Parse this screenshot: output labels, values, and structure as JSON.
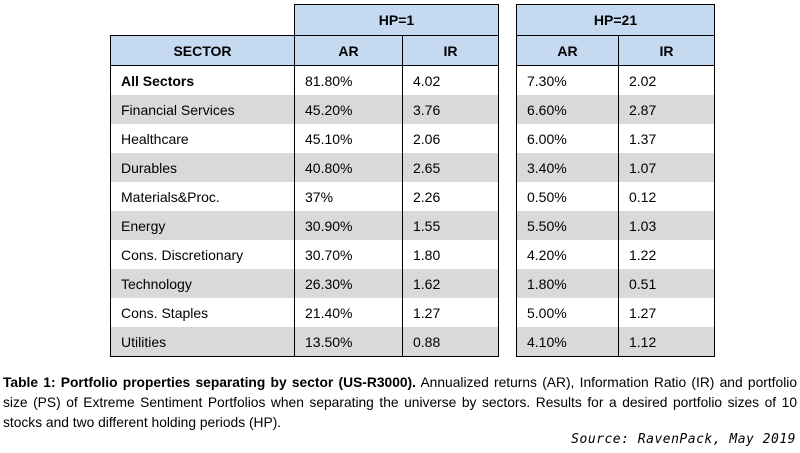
{
  "table": {
    "hp1_label": "HP=1",
    "hp21_label": "HP=21",
    "columns": {
      "sector": "SECTOR",
      "ar": "AR",
      "ir": "IR"
    },
    "rows": [
      {
        "sector": "All Sectors",
        "hp1_ar": "81.80%",
        "hp1_ir": "4.02",
        "hp21_ar": "7.30%",
        "hp21_ir": "2.02",
        "bold": true
      },
      {
        "sector": "Financial Services",
        "hp1_ar": "45.20%",
        "hp1_ir": "3.76",
        "hp21_ar": "6.60%",
        "hp21_ir": "2.87"
      },
      {
        "sector": "Healthcare",
        "hp1_ar": "45.10%",
        "hp1_ir": "2.06",
        "hp21_ar": "6.00%",
        "hp21_ir": "1.37"
      },
      {
        "sector": "Durables",
        "hp1_ar": "40.80%",
        "hp1_ir": "2.65",
        "hp21_ar": "3.40%",
        "hp21_ir": "1.07"
      },
      {
        "sector": "Materials&Proc.",
        "hp1_ar": "37%",
        "hp1_ir": "2.26",
        "hp21_ar": "0.50%",
        "hp21_ir": "0.12"
      },
      {
        "sector": "Energy",
        "hp1_ar": "30.90%",
        "hp1_ir": "1.55",
        "hp21_ar": "5.50%",
        "hp21_ir": "1.03"
      },
      {
        "sector": "Cons. Discretionary",
        "hp1_ar": "30.70%",
        "hp1_ir": "1.80",
        "hp21_ar": "4.20%",
        "hp21_ir": "1.22"
      },
      {
        "sector": "Technology",
        "hp1_ar": "26.30%",
        "hp1_ir": "1.62",
        "hp21_ar": "1.80%",
        "hp21_ir": "0.51"
      },
      {
        "sector": "Cons. Staples",
        "hp1_ar": "21.40%",
        "hp1_ir": "1.27",
        "hp21_ar": "5.00%",
        "hp21_ir": "1.27"
      },
      {
        "sector": "Utilities",
        "hp1_ar": "13.50%",
        "hp1_ir": "0.88",
        "hp21_ar": "4.10%",
        "hp21_ir": "1.12"
      }
    ]
  },
  "caption": {
    "bold": "Table 1: Portfolio properties separating by sector (US-R3000).",
    "text": " Annualized returns (AR), Information Ratio (IR) and portfolio size (PS) of Extreme Sentiment Portfolios when separating the universe by sectors. Results for a desired portfolio sizes of 10 stocks and two different holding periods (HP)."
  },
  "source": "Source: RavenPack, May 2019",
  "colors": {
    "header_bg": "#c5d9f1",
    "stripe_bg": "#d9d9d9"
  }
}
